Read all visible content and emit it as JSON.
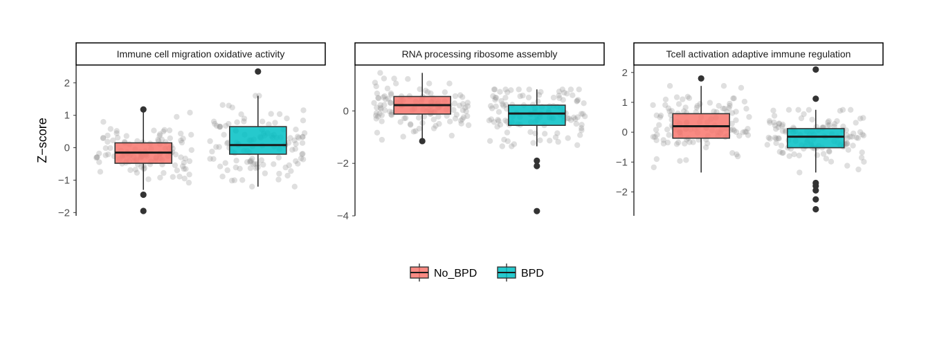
{
  "chart_data": {
    "type": "boxplot",
    "ylabel": "Z−score",
    "legend": {
      "placement": "bottom",
      "entries": [
        {
          "name": "No_BPD",
          "color": "#F8766D"
        },
        {
          "name": "BPD",
          "color": "#00BFC4"
        }
      ]
    },
    "groups": [
      "No_BPD",
      "BPD"
    ],
    "colors": {
      "No_BPD": "#F8766D",
      "BPD": "#00BFC4",
      "points": "#8c8c8c",
      "outlier": "#333333",
      "frame": "#000000"
    },
    "panels": [
      {
        "title": "Immune cell migration oxidative activity",
        "ylim": [
          -2.1,
          2.55
        ],
        "yticks": [
          2,
          1,
          0,
          -1,
          -2
        ],
        "ytick_labels": [
          "2",
          "1",
          "0",
          "−1",
          "−2"
        ],
        "boxes": [
          {
            "group": "No_BPD",
            "whisker_low": -1.3,
            "q1": -0.48,
            "median": -0.15,
            "q3": 0.15,
            "whisker_high": 1.15,
            "outliers": [
              1.18,
              -1.45,
              -1.95
            ]
          },
          {
            "group": "BPD",
            "whisker_low": -1.2,
            "q1": -0.2,
            "median": 0.08,
            "q3": 0.65,
            "whisker_high": 1.6,
            "outliers": [
              2.35
            ]
          }
        ]
      },
      {
        "title": "RNA processing ribosome assembly",
        "ylim": [
          -4.0,
          1.75
        ],
        "yticks": [
          0,
          -2,
          -4
        ],
        "ytick_labels": [
          "0",
          "−2",
          "−4"
        ],
        "boxes": [
          {
            "group": "No_BPD",
            "whisker_low": -1.1,
            "q1": -0.12,
            "median": 0.22,
            "q3": 0.55,
            "whisker_high": 1.45,
            "outliers": [
              -1.15
            ]
          },
          {
            "group": "BPD",
            "whisker_low": -1.35,
            "q1": -0.55,
            "median": -0.1,
            "q3": 0.22,
            "whisker_high": 0.82,
            "outliers": [
              -1.9,
              -2.1,
              -3.82
            ]
          }
        ]
      },
      {
        "title": "Tcell activation adaptive immune regulation",
        "ylim": [
          -2.8,
          2.25
        ],
        "yticks": [
          2,
          1,
          0,
          -1,
          -2
        ],
        "ytick_labels": [
          "2",
          "1",
          "0",
          "−1",
          "−2"
        ],
        "boxes": [
          {
            "group": "No_BPD",
            "whisker_low": -1.35,
            "q1": -0.2,
            "median": 0.2,
            "q3": 0.62,
            "whisker_high": 1.55,
            "outliers": [
              1.8
            ]
          },
          {
            "group": "BPD",
            "whisker_low": -1.35,
            "q1": -0.52,
            "median": -0.15,
            "q3": 0.12,
            "whisker_high": 0.75,
            "outliers": [
              2.1,
              1.12,
              -1.7,
              -1.8,
              -1.95,
              -2.25,
              -2.58
            ]
          }
        ]
      }
    ]
  }
}
